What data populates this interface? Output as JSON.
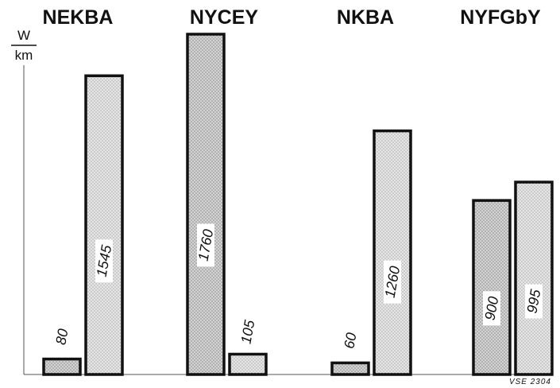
{
  "chart_data": {
    "type": "bar",
    "categories": [
      "NEKBA",
      "NYCEY",
      "NKBA",
      "NYFGbY"
    ],
    "series": [
      {
        "values": [
          80,
          1760,
          60,
          900
        ]
      },
      {
        "values": [
          1545,
          105,
          1260,
          995
        ]
      }
    ],
    "value_labels": [
      [
        "80",
        "1545"
      ],
      [
        "1760",
        "105"
      ],
      [
        "60",
        "1260"
      ],
      [
        "900",
        "995"
      ]
    ],
    "ylabel_numerator": "W",
    "ylabel_denominator": "km",
    "ylim": [
      0,
      1760
    ],
    "grid": false,
    "legend": "none",
    "colors": {
      "series_1_fill": "#cfcfcf",
      "series_2_fill": "#e4e4e4",
      "stroke": "#111111"
    }
  },
  "figure_ref": "VSE 2304"
}
